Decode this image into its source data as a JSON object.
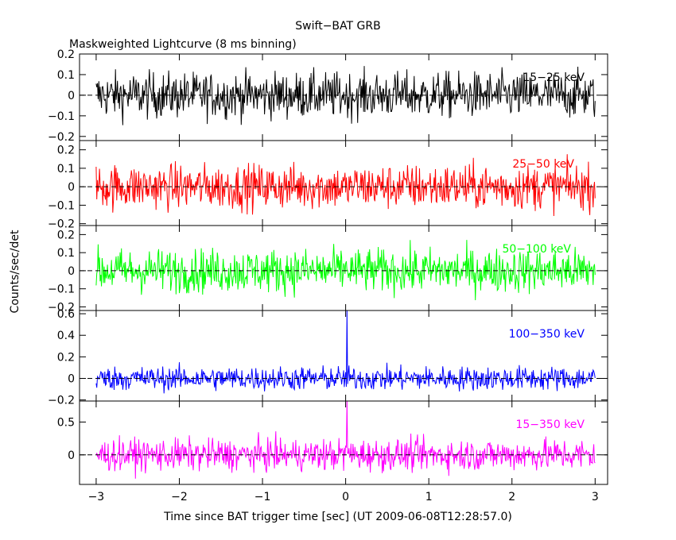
{
  "header": {
    "title": "Swift−BAT GRB",
    "subtitle": "Maskweighted Lightcurve (8 ms binning)"
  },
  "axes": {
    "xlabel": "Time since BAT trigger time [sec] (UT 2009-06-08T12:28:57.0)",
    "ylabel": "Counts/sec/det",
    "xticks": [
      -3,
      -2,
      -1,
      0,
      1,
      2,
      3
    ],
    "xtick_labels": [
      "−3",
      "−2",
      "−1",
      "0",
      "1",
      "2",
      "3"
    ]
  },
  "colors": {
    "band_15_25": "#000000",
    "band_25_50": "#ff0000",
    "band_50_100": "#00ff00",
    "band_100_350": "#0000ff",
    "band_15_350": "#ff00ff"
  },
  "chart_data": [
    {
      "type": "line",
      "series": [
        {
          "name": "15−25 keV",
          "peak": {
            "x": 0.02,
            "y": 0.0
          }
        }
      ],
      "xlim": [
        -3.2,
        3.15
      ],
      "ylim": [
        -0.22,
        0.2
      ],
      "yticks": [
        -0.2,
        -0.1,
        0,
        0.1,
        0.2
      ],
      "ytick_labels": [
        "−0.2",
        "−0.1",
        "0",
        "0.1",
        "0.2"
      ],
      "noise_sigma": 0.055,
      "bin_width_s": 0.008
    },
    {
      "type": "line",
      "series": [
        {
          "name": "25−50 keV",
          "peak": {
            "x": 0.02,
            "y": 0.0
          }
        }
      ],
      "xlim": [
        -3.2,
        3.15
      ],
      "ylim": [
        -0.21,
        0.25
      ],
      "yticks": [
        -0.2,
        -0.1,
        0,
        0.1,
        0.2
      ],
      "ytick_labels": [
        "−0.2",
        "−0.1",
        "0",
        "0.1",
        "0.2"
      ],
      "noise_sigma": 0.06,
      "bin_width_s": 0.008
    },
    {
      "type": "line",
      "series": [
        {
          "name": "50−100 keV",
          "peak": {
            "x": 0.02,
            "y": 0.0
          }
        }
      ],
      "xlim": [
        -3.2,
        3.15
      ],
      "ylim": [
        -0.22,
        0.25
      ],
      "yticks": [
        -0.2,
        -0.1,
        0,
        0.1,
        0.2
      ],
      "ytick_labels": [
        "−0.2",
        "−0.1",
        "0",
        "0.1",
        "0.2"
      ],
      "noise_sigma": 0.06,
      "bin_width_s": 0.008
    },
    {
      "type": "line",
      "series": [
        {
          "name": "100−350 keV",
          "peak": {
            "x": 0.02,
            "y": 0.63
          }
        }
      ],
      "xlim": [
        -3.2,
        3.15
      ],
      "ylim": [
        -0.21,
        0.63
      ],
      "yticks": [
        -0.2,
        0,
        0.2,
        0.4,
        0.6
      ],
      "ytick_labels": [
        "−0.2",
        "0",
        "0.2",
        "0.4",
        "0.6"
      ],
      "noise_sigma": 0.055,
      "bin_width_s": 0.008
    },
    {
      "type": "line",
      "series": [
        {
          "name": "15−350 keV",
          "peak": {
            "x": 0.02,
            "y": 0.82
          }
        }
      ],
      "xlim": [
        -3.2,
        3.15
      ],
      "ylim": [
        -0.45,
        0.82
      ],
      "yticks": [
        0,
        0.5
      ],
      "ytick_labels": [
        "0",
        "0.5"
      ],
      "noise_sigma": 0.12,
      "bin_width_s": 0.008
    }
  ]
}
